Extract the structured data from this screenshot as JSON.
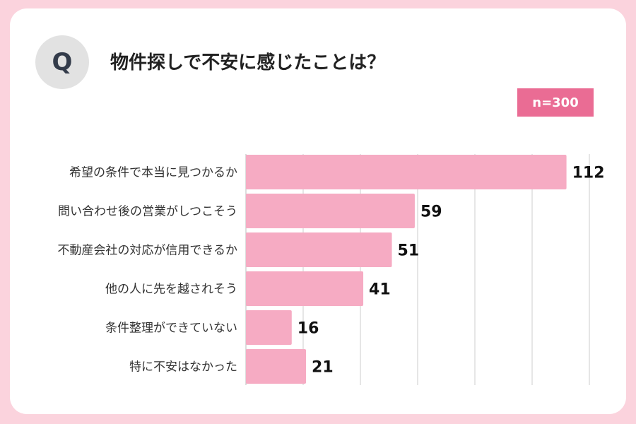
{
  "header": {
    "q_letter": "Q",
    "question": "物件探しで不安に感じたことは？",
    "sample_size": "n=300"
  },
  "colors": {
    "frame": "#fbd3dd",
    "bar": "#f6abc3",
    "badge": "#ea6c94",
    "grid": "#cccccc"
  },
  "chart_data": {
    "type": "bar",
    "orientation": "horizontal",
    "title": "物件探しで不安に感じたことは？",
    "categories": [
      "希望の条件で本当に見つかるか",
      "問い合わせ後の営業がしつこそう",
      "不動産会社の対応が信用できるか",
      "他の人に先を越されそう",
      "条件整理ができていない",
      "特に不安はなかった"
    ],
    "values": [
      112,
      59,
      51,
      41,
      16,
      21
    ],
    "xlim": [
      0,
      120
    ],
    "grid": true,
    "data_labels": true
  }
}
